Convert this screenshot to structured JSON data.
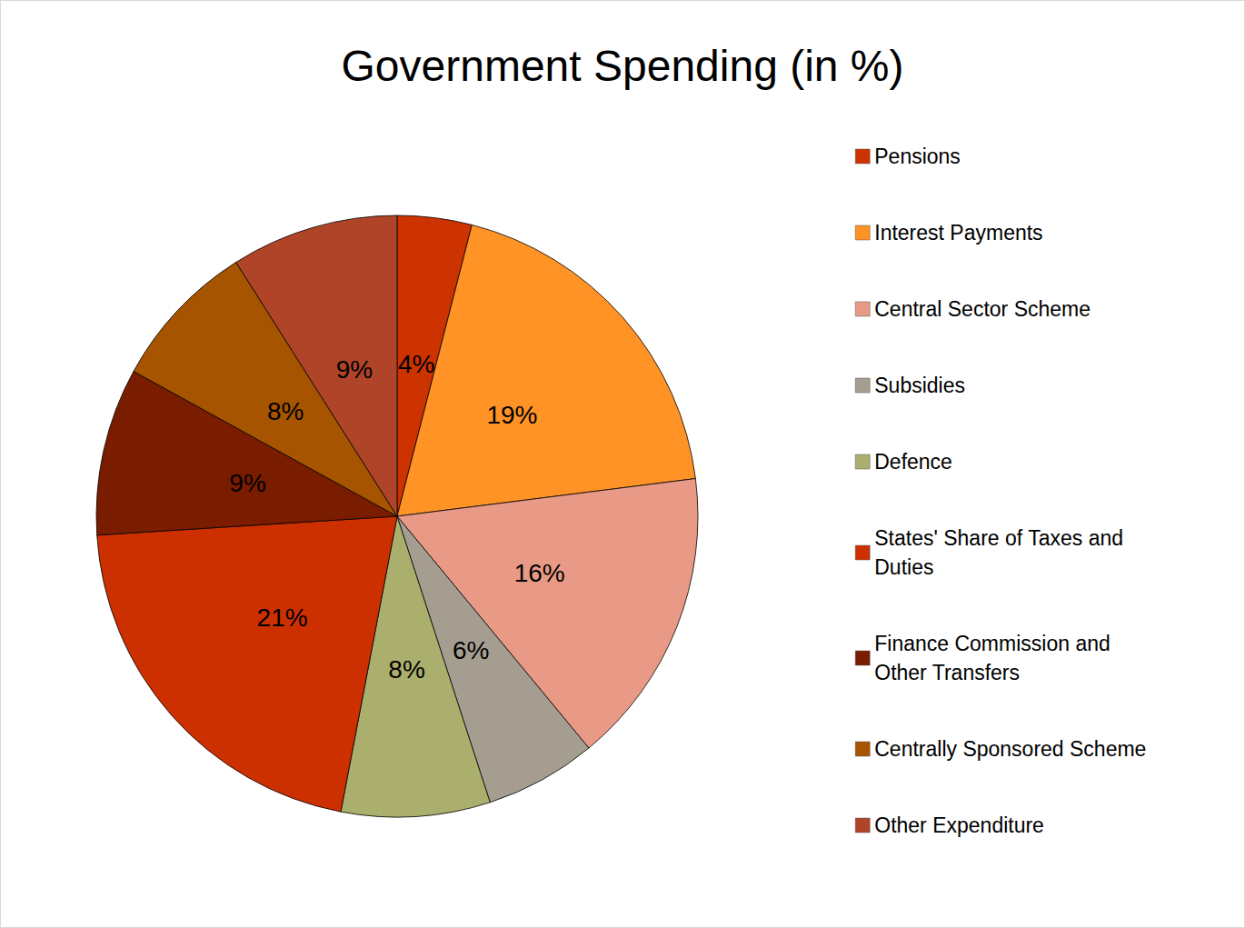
{
  "chart_data": {
    "type": "pie",
    "title": "Government Spending (in %)",
    "categories": [
      "Pensions",
      "Interest Payments",
      "Central Sector Scheme",
      "Subsidies",
      "Defence",
      "States' Share of Taxes and Duties",
      "Finance Commission and Other Transfers",
      "Centrally Sponsored Scheme",
      "Other Expenditure"
    ],
    "values": [
      4,
      19,
      16,
      6,
      8,
      21,
      9,
      8,
      9
    ],
    "value_labels": [
      "4%",
      "19%",
      "16%",
      "6%",
      "8%",
      "21%",
      "9%",
      "8%",
      "9%"
    ],
    "colors": [
      "#cc3300",
      "#ff9326",
      "#e89a86",
      "#a59e90",
      "#abaf6d",
      "#cc3000",
      "#7a1c00",
      "#a65400",
      "#b04428"
    ],
    "data_labels": true,
    "legend": "right"
  }
}
